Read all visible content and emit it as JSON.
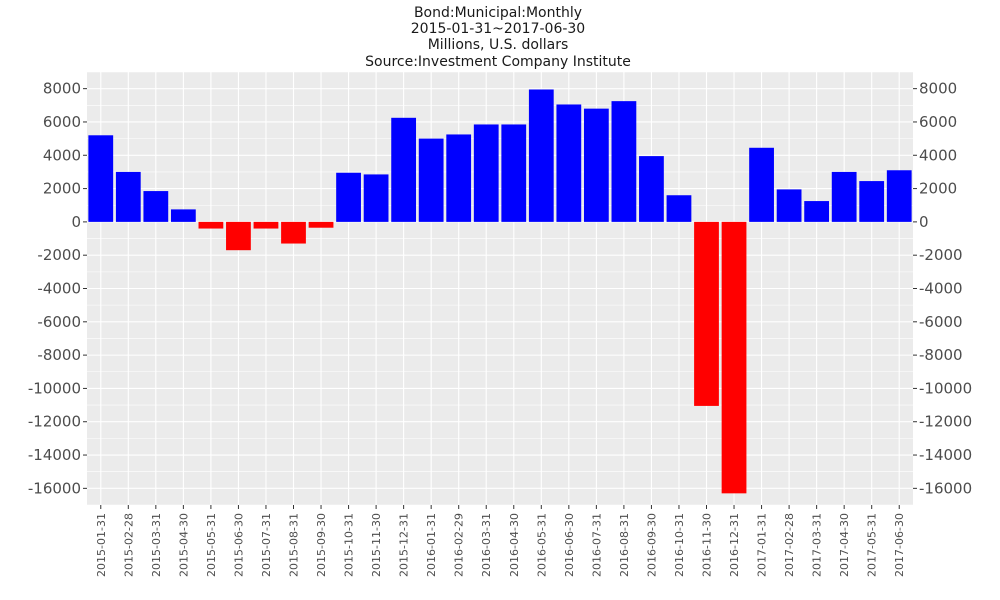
{
  "chart_data": {
    "type": "bar",
    "title_lines": [
      "Bond:Municipal:Monthly",
      "2015-01-31~2017-06-30",
      "Millions, U.S. dollars",
      "Source:Investment Company Institute"
    ],
    "xlabel": "",
    "ylabel": "",
    "ylim": [
      -17000,
      9000
    ],
    "yticks": [
      8000,
      6000,
      4000,
      2000,
      0,
      -2000,
      -4000,
      -6000,
      -8000,
      -10000,
      -12000,
      -14000,
      -16000
    ],
    "grid": true,
    "positive_color": "#0000ff",
    "negative_color": "#ff0000",
    "panel_color": "#ebebeb",
    "categories": [
      "2015-01-31",
      "2015-02-28",
      "2015-03-31",
      "2015-04-30",
      "2015-05-31",
      "2015-06-30",
      "2015-07-31",
      "2015-08-31",
      "2015-09-30",
      "2015-10-31",
      "2015-11-30",
      "2015-12-31",
      "2016-01-31",
      "2016-02-29",
      "2016-03-31",
      "2016-04-30",
      "2016-05-31",
      "2016-06-30",
      "2016-07-31",
      "2016-08-31",
      "2016-09-30",
      "2016-10-31",
      "2016-11-30",
      "2016-12-31",
      "2017-01-31",
      "2017-02-28",
      "2017-03-31",
      "2017-04-30",
      "2017-05-31",
      "2017-06-30"
    ],
    "values": [
      5200,
      3000,
      1850,
      750,
      -400,
      -1700,
      -400,
      -1300,
      -350,
      2950,
      2850,
      6250,
      5000,
      5250,
      5850,
      5850,
      7950,
      7050,
      6800,
      7250,
      3950,
      1600,
      -11050,
      -16300,
      4450,
      1950,
      1250,
      3000,
      2450,
      3100
    ]
  }
}
